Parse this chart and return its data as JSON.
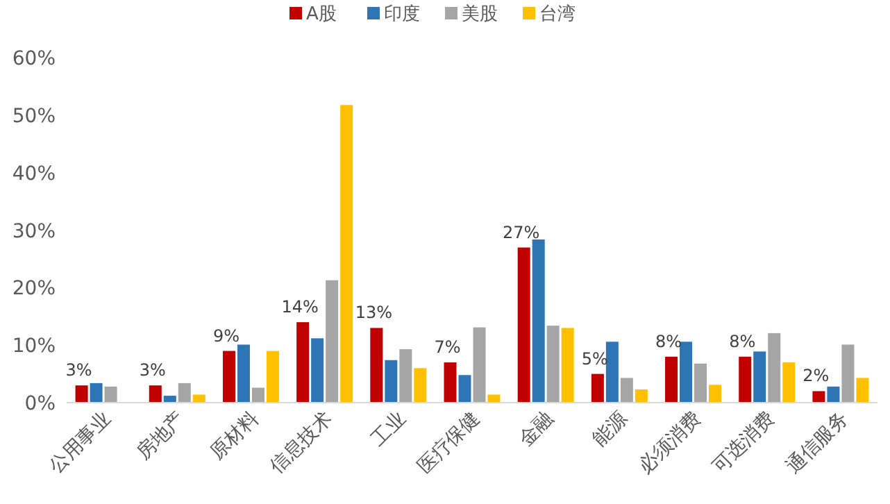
{
  "chart_data": {
    "type": "bar",
    "categories": [
      "公用事业",
      "房地产",
      "原材料",
      "信息技术",
      "工业",
      "医疗保健",
      "金融",
      "能源",
      "必须消费",
      "可选消费",
      "通信服务"
    ],
    "series": [
      {
        "name": "A股",
        "color": "#c00000",
        "values": [
          3,
          3,
          9,
          14,
          13,
          7,
          27,
          5,
          8,
          8,
          2
        ],
        "value_labels": [
          "3%",
          "3%",
          "9%",
          "14%",
          "13%",
          "7%",
          "27%",
          "5%",
          "8%",
          "8%",
          "2%"
        ]
      },
      {
        "name": "印度",
        "color": "#2e75b6",
        "values": [
          3.4,
          1.2,
          10.1,
          11.2,
          7.4,
          4.8,
          28.4,
          10.6,
          10.6,
          8.9,
          2.8
        ]
      },
      {
        "name": "美股",
        "color": "#a5a5a5",
        "values": [
          2.8,
          3.4,
          2.6,
          21.3,
          9.3,
          13.1,
          13.4,
          4.3,
          6.8,
          12.1,
          10.1
        ]
      },
      {
        "name": "台湾",
        "color": "#ffc000",
        "values": [
          null,
          1.4,
          9.0,
          51.8,
          6.0,
          1.4,
          13.0,
          2.3,
          3.1,
          7.0,
          4.3
        ]
      }
    ],
    "ylim": [
      0,
      60
    ],
    "yticks": [
      {
        "value": 0,
        "label": "0%"
      },
      {
        "value": 10,
        "label": "10%"
      },
      {
        "value": 20,
        "label": "20%"
      },
      {
        "value": 30,
        "label": "30%"
      },
      {
        "value": 40,
        "label": "40%"
      },
      {
        "value": 50,
        "label": "50%"
      },
      {
        "value": 60,
        "label": "60%"
      }
    ],
    "grid": false,
    "legend": "top"
  }
}
